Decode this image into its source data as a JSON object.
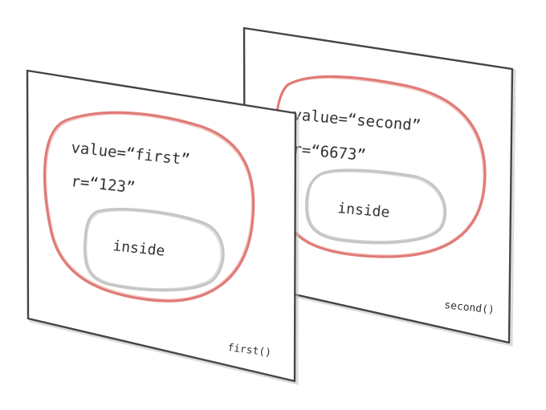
{
  "first_frame": {
    "lines": [
      "value=“first”",
      "r=“123”"
    ],
    "inner_label": "inside",
    "caption": "first()"
  },
  "second_frame": {
    "lines": [
      "value=“second”",
      "r=“6673”"
    ],
    "inner_label": "inside",
    "caption": "second()"
  },
  "colors": {
    "frame_stroke": "#444444",
    "outer_blob": "#e07b76",
    "inner_blob": "#c6c6c6",
    "text": "#333333"
  }
}
